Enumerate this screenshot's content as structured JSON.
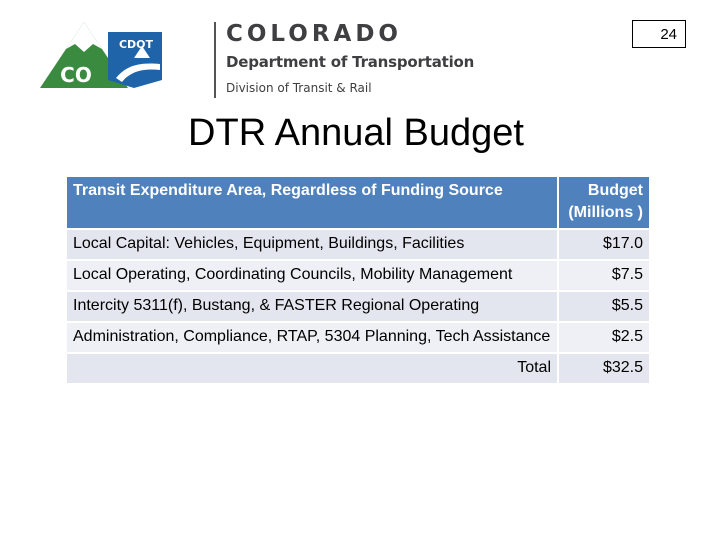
{
  "logo": {
    "emblem_text": "CDOT",
    "state_abbrev": "CO",
    "brand_name": "COLORADO",
    "department": "Department of Transportation",
    "division": "Division of Transit & Rail",
    "colors": {
      "green": "#3a8b3f",
      "blue": "#1f63a8",
      "gray": "#3f3f42"
    }
  },
  "page_number": "24",
  "title": "DTR Annual Budget",
  "table": {
    "headers": {
      "area": "Transit Expenditure Area, Regardless of Funding Source",
      "budget": "Budget (Millions )"
    },
    "rows": [
      {
        "area": "Local Capital: Vehicles, Equipment, Buildings, Facilities",
        "budget": "$17.0"
      },
      {
        "area": "Local Operating, Coordinating Councils, Mobility Management",
        "budget": "$7.5"
      },
      {
        "area": "Intercity 5311(f), Bustang, & FASTER Regional Operating",
        "budget": "$5.5"
      },
      {
        "area": "Administration, Compliance, RTAP, 5304 Planning, Tech Assistance",
        "budget": "$2.5"
      }
    ],
    "total": {
      "label": "Total",
      "budget": "$32.5"
    },
    "colors": {
      "header": "#4f81bd",
      "row": "#e3e6ee",
      "row_alt": "#eef0f5"
    }
  }
}
